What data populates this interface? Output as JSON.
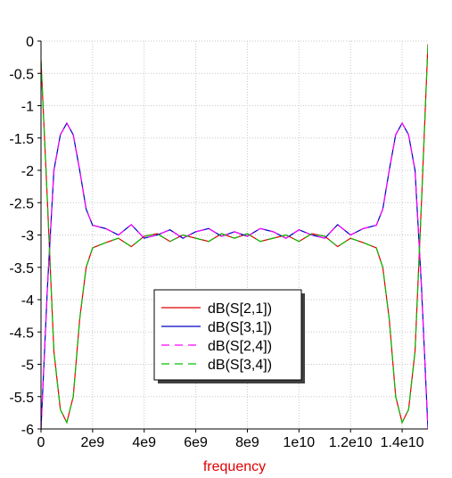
{
  "chart_data": {
    "type": "line",
    "x_label": "frequency",
    "x": [
      0,
      250000000,
      500000000,
      750000000,
      1000000000,
      1250000000,
      1500000000,
      1750000000,
      2000000000,
      2500000000,
      3000000000,
      3500000000,
      4000000000,
      4500000000,
      5000000000,
      5500000000,
      6000000000,
      6500000000,
      7000000000,
      7500000000,
      8000000000,
      8500000000,
      9000000000,
      9500000000,
      10000000000,
      10500000000,
      11000000000,
      11500000000,
      12000000000,
      12500000000,
      13000000000,
      13250000000,
      13500000000,
      13750000000,
      14000000000,
      14250000000,
      14500000000,
      14750000000,
      15000000000
    ],
    "series": [
      {
        "name": "dB(S[2,1])",
        "color": "#e00000",
        "dashed": false,
        "values": [
          -0.3,
          -2.5,
          -4.8,
          -5.7,
          -5.9,
          -5.5,
          -4.3,
          -3.5,
          -3.2,
          -3.12,
          -3.05,
          -3.18,
          -3.02,
          -2.98,
          -3.1,
          -3.0,
          -3.05,
          -3.1,
          -2.98,
          -3.05,
          -2.98,
          -3.1,
          -3.05,
          -3.0,
          -3.1,
          -2.98,
          -3.02,
          -3.18,
          -3.05,
          -3.12,
          -3.2,
          -3.5,
          -4.3,
          -5.5,
          -5.9,
          -5.7,
          -4.8,
          -2.5,
          -0.05
        ]
      },
      {
        "name": "dB(S[3,1])",
        "color": "#0000c0",
        "dashed": false,
        "values": [
          -6,
          -3.8,
          -2.0,
          -1.45,
          -1.27,
          -1.45,
          -2.0,
          -2.6,
          -2.85,
          -2.9,
          -3.0,
          -2.84,
          -3.05,
          -3.0,
          -2.92,
          -3.05,
          -2.95,
          -2.9,
          -3.02,
          -2.95,
          -3.02,
          -2.9,
          -2.95,
          -3.05,
          -2.92,
          -3.0,
          -3.05,
          -2.84,
          -3.0,
          -2.9,
          -2.85,
          -2.6,
          -2.0,
          -1.45,
          -1.27,
          -1.45,
          -2.0,
          -3.8,
          -6
        ]
      },
      {
        "name": "dB(S[2,4])",
        "color": "#ff00ff",
        "dashed": true,
        "values": [
          -6,
          -3.8,
          -2.0,
          -1.45,
          -1.27,
          -1.45,
          -2.0,
          -2.6,
          -2.85,
          -2.9,
          -3.0,
          -2.84,
          -3.05,
          -3.0,
          -2.92,
          -3.05,
          -2.95,
          -2.9,
          -3.02,
          -2.95,
          -3.02,
          -2.9,
          -2.95,
          -3.05,
          -2.92,
          -3.0,
          -3.05,
          -2.84,
          -3.0,
          -2.9,
          -2.85,
          -2.6,
          -2.0,
          -1.45,
          -1.27,
          -1.45,
          -2.0,
          -3.8,
          -6
        ]
      },
      {
        "name": "dB(S[3,4])",
        "color": "#00c000",
        "dashed": true,
        "values": [
          -0.3,
          -2.5,
          -4.8,
          -5.7,
          -5.9,
          -5.5,
          -4.3,
          -3.5,
          -3.2,
          -3.12,
          -3.05,
          -3.18,
          -3.02,
          -2.98,
          -3.1,
          -3.0,
          -3.05,
          -3.1,
          -2.98,
          -3.05,
          -2.98,
          -3.1,
          -3.05,
          -3.0,
          -3.1,
          -2.98,
          -3.02,
          -3.18,
          -3.05,
          -3.12,
          -3.2,
          -3.5,
          -4.3,
          -5.5,
          -5.9,
          -5.7,
          -4.8,
          -2.5,
          -0.05
        ]
      }
    ],
    "xlim": [
      0,
      15000000000
    ],
    "xticks": [
      0,
      {
        "value": 2000000000,
        "label": "2e9"
      },
      {
        "value": 4000000000,
        "label": "4e9"
      },
      {
        "value": 6000000000,
        "label": "6e9"
      },
      {
        "value": 8000000000,
        "label": "8e9"
      },
      {
        "value": 10000000000,
        "label": "1e10"
      },
      {
        "value": 12000000000,
        "label": "1.2e10"
      },
      {
        "value": 14000000000,
        "label": "1.4e10"
      }
    ],
    "ylim": [
      -6,
      0
    ],
    "yticks": [
      0,
      -0.5,
      -1,
      -1.5,
      -2,
      -2.5,
      -3,
      -3.5,
      -4,
      -4.5,
      -5,
      -5.5,
      -6
    ],
    "grid": true
  }
}
